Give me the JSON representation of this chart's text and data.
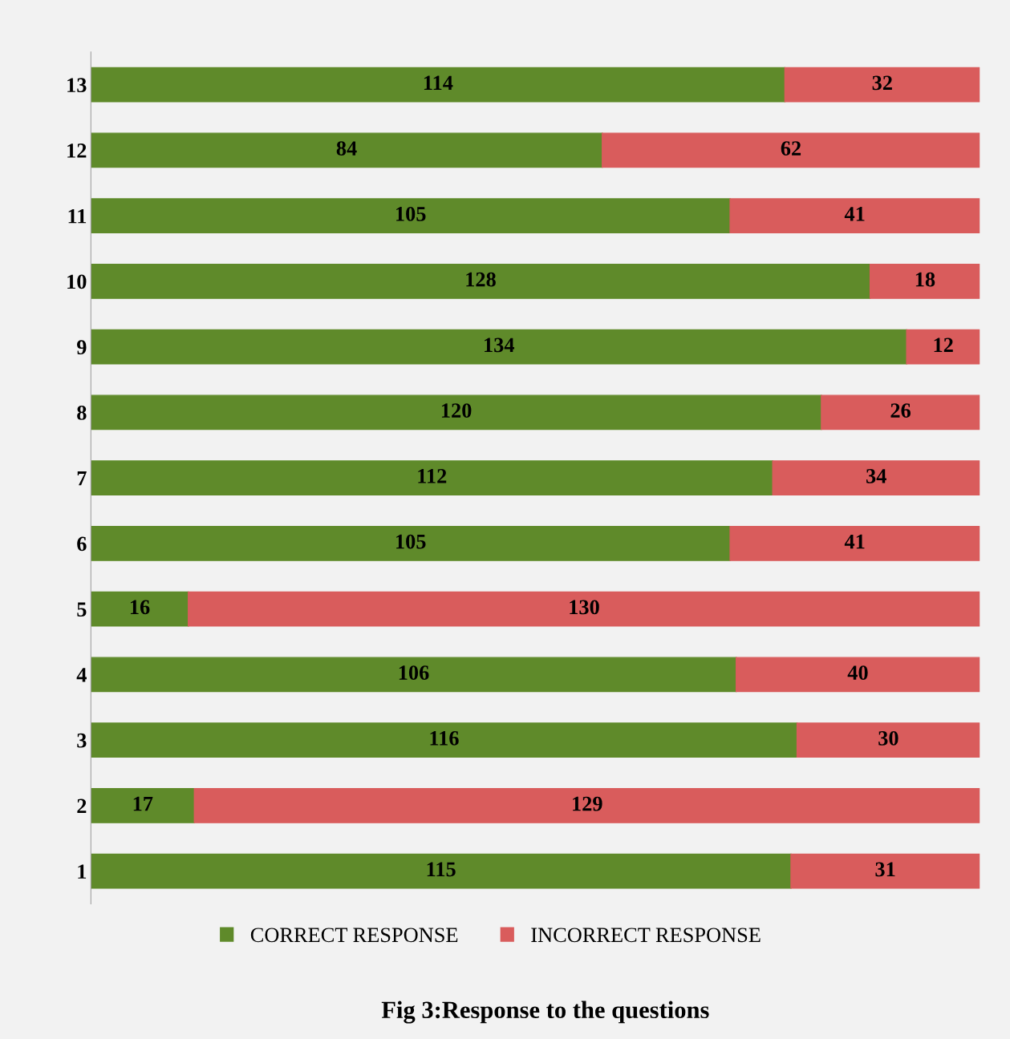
{
  "chart_data": {
    "type": "bar",
    "orientation": "horizontal",
    "stacked": true,
    "title": "Fig 3:Response to the questions",
    "categories": [
      "13",
      "12",
      "11",
      "10",
      "9",
      "8",
      "7",
      "6",
      "5",
      "4",
      "3",
      "2",
      "1"
    ],
    "series": [
      {
        "name": "CORRECT RESPONSE",
        "color": "#5f8a2a",
        "values": [
          114,
          84,
          105,
          128,
          134,
          120,
          112,
          105,
          16,
          106,
          116,
          17,
          115
        ]
      },
      {
        "name": "INCORRECT RESPONSE",
        "color": "#d95c5c",
        "values": [
          32,
          62,
          41,
          18,
          12,
          26,
          34,
          41,
          130,
          40,
          30,
          129,
          31
        ]
      }
    ],
    "xlim": [
      0,
      146
    ],
    "tick_labels": "y",
    "data_labels": true,
    "legend": "bottom",
    "grid": false
  }
}
